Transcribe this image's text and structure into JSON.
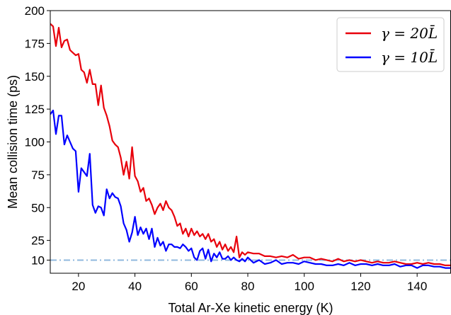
{
  "chart_data": {
    "type": "line",
    "title": "",
    "xlabel": "Total Ar-Xe kinetic energy (K)",
    "ylabel": "Mean collision time (ps)",
    "xlim": [
      10,
      152
    ],
    "ylim": [
      0,
      200
    ],
    "xticks": [
      20,
      40,
      60,
      80,
      100,
      120,
      140
    ],
    "yticks": [
      10,
      25,
      50,
      75,
      100,
      125,
      150,
      175,
      200
    ],
    "grid": false,
    "legend_position": "top-right",
    "reference_line": {
      "y": 10,
      "style": "dash-dot",
      "color": "#8fb8de"
    },
    "series": [
      {
        "name": "γ = 20L̄",
        "color": "#e8000b",
        "x": [
          10,
          11,
          12,
          13,
          14,
          15,
          16,
          17,
          18,
          19,
          20,
          21,
          22,
          23,
          24,
          25,
          26,
          27,
          28,
          29,
          30,
          31,
          32,
          33,
          34,
          35,
          36,
          37,
          38,
          39,
          40,
          41,
          42,
          43,
          44,
          45,
          46,
          47,
          48,
          49,
          50,
          51,
          52,
          53,
          54,
          55,
          56,
          57,
          58,
          59,
          60,
          61,
          62,
          63,
          64,
          65,
          66,
          67,
          68,
          69,
          70,
          71,
          72,
          73,
          74,
          75,
          76,
          77,
          78,
          79,
          80,
          82,
          84,
          86,
          88,
          90,
          92,
          94,
          96,
          98,
          100,
          102,
          104,
          106,
          108,
          110,
          112,
          114,
          116,
          118,
          120,
          122,
          124,
          126,
          128,
          130,
          132,
          134,
          136,
          138,
          140,
          142,
          144,
          146,
          148,
          150,
          152
        ],
        "y": [
          190,
          188,
          173,
          187,
          172,
          177,
          178,
          170,
          168,
          166,
          167,
          155,
          153,
          145,
          155,
          144,
          144,
          128,
          143,
          126,
          120,
          112,
          101,
          98,
          96,
          88,
          75,
          85,
          72,
          96,
          74,
          70,
          62,
          65,
          55,
          57,
          52,
          45,
          50,
          53,
          48,
          55,
          50,
          48,
          43,
          36,
          38,
          30,
          34,
          28,
          34,
          29,
          32,
          28,
          30,
          26,
          30,
          24,
          26,
          20,
          24,
          18,
          22,
          17,
          20,
          16,
          28,
          12,
          16,
          14,
          16,
          15,
          15,
          13,
          13,
          12,
          13,
          12,
          14,
          11,
          12,
          12,
          10,
          11,
          10,
          9,
          11,
          9,
          10,
          9,
          10,
          9,
          8,
          9,
          8,
          8,
          9,
          8,
          7,
          7,
          8,
          7,
          8,
          7,
          7,
          6,
          6
        ]
      },
      {
        "name": "γ = 10L̄",
        "color": "#0000ff",
        "x": [
          10,
          11,
          12,
          13,
          14,
          15,
          16,
          17,
          18,
          19,
          20,
          21,
          22,
          23,
          24,
          25,
          26,
          27,
          28,
          29,
          30,
          31,
          32,
          33,
          34,
          35,
          36,
          37,
          38,
          39,
          40,
          41,
          42,
          43,
          44,
          45,
          46,
          47,
          48,
          49,
          50,
          51,
          52,
          53,
          54,
          55,
          56,
          57,
          58,
          59,
          60,
          61,
          62,
          63,
          64,
          65,
          66,
          67,
          68,
          69,
          70,
          71,
          72,
          73,
          74,
          75,
          76,
          77,
          78,
          79,
          80,
          82,
          84,
          86,
          88,
          90,
          92,
          94,
          96,
          98,
          100,
          102,
          104,
          106,
          108,
          110,
          112,
          114,
          116,
          118,
          120,
          122,
          124,
          126,
          128,
          130,
          132,
          134,
          136,
          138,
          140,
          142,
          144,
          146,
          148,
          150,
          152
        ],
        "y": [
          121,
          124,
          106,
          120,
          120,
          98,
          105,
          100,
          95,
          93,
          62,
          80,
          77,
          74,
          91,
          52,
          46,
          51,
          50,
          44,
          64,
          57,
          61,
          58,
          57,
          51,
          38,
          33,
          24,
          31,
          43,
          29,
          35,
          30,
          34,
          26,
          34,
          20,
          27,
          21,
          24,
          17,
          22,
          22,
          20,
          20,
          19,
          22,
          20,
          17,
          19,
          12,
          10,
          17,
          19,
          11,
          18,
          9,
          15,
          12,
          16,
          11,
          11,
          13,
          10,
          12,
          10,
          9,
          11,
          9,
          12,
          8,
          10,
          7,
          8,
          10,
          7,
          8,
          8,
          7,
          9,
          8,
          7,
          7,
          6,
          6,
          7,
          6,
          8,
          6,
          7,
          7,
          6,
          7,
          6,
          6,
          7,
          5,
          6,
          6,
          4,
          6,
          6,
          5,
          5,
          4,
          4
        ]
      }
    ]
  }
}
